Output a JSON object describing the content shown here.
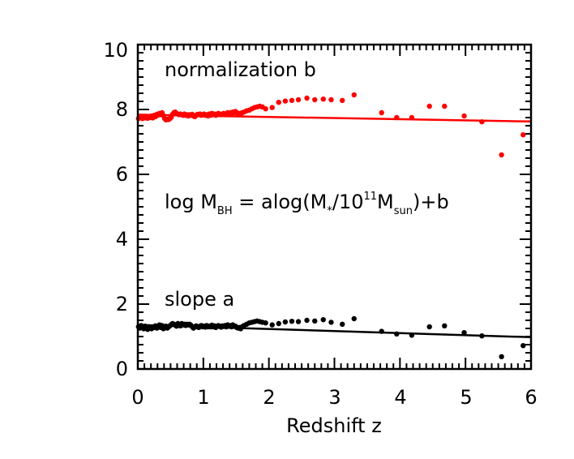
{
  "chart_data": {
    "type": "scatter",
    "title": "",
    "xlabel": "Redshift z",
    "ylabel": "",
    "xlim": [
      0,
      6
    ],
    "ylim": [
      0,
      10
    ],
    "x_ticks": [
      "0",
      "1",
      "2",
      "3",
      "4",
      "5",
      "6"
    ],
    "y_ticks": [
      "0",
      "2",
      "4",
      "6",
      "8",
      "10"
    ],
    "annotations": {
      "normalization": "normalization b",
      "slope": "slope a",
      "formula_parts": {
        "p1": "log M",
        "p1_sub": "BH",
        "p2": " = alog(M",
        "p2_sub": "*",
        "p3": "/10",
        "p3_sup": "11",
        "p4": "M",
        "p4_sub": "sun",
        "p5": ")+b"
      }
    },
    "series": [
      {
        "name": "normalization b",
        "color": "#ff0000",
        "points": [
          [
            0.01,
            7.72
          ],
          [
            0.03,
            7.75
          ],
          [
            0.05,
            7.78
          ],
          [
            0.07,
            7.72
          ],
          [
            0.09,
            7.76
          ],
          [
            0.11,
            7.74
          ],
          [
            0.13,
            7.79
          ],
          [
            0.15,
            7.73
          ],
          [
            0.17,
            7.77
          ],
          [
            0.19,
            7.75
          ],
          [
            0.21,
            7.8
          ],
          [
            0.23,
            7.74
          ],
          [
            0.25,
            7.82
          ],
          [
            0.27,
            7.78
          ],
          [
            0.29,
            7.85
          ],
          [
            0.31,
            7.83
          ],
          [
            0.33,
            7.88
          ],
          [
            0.35,
            7.84
          ],
          [
            0.37,
            7.9
          ],
          [
            0.39,
            7.81
          ],
          [
            0.41,
            7.72
          ],
          [
            0.43,
            7.68
          ],
          [
            0.45,
            7.7
          ],
          [
            0.47,
            7.69
          ],
          [
            0.49,
            7.72
          ],
          [
            0.51,
            7.76
          ],
          [
            0.53,
            7.85
          ],
          [
            0.55,
            7.9
          ],
          [
            0.57,
            7.92
          ],
          [
            0.59,
            7.88
          ],
          [
            0.61,
            7.86
          ],
          [
            0.63,
            7.84
          ],
          [
            0.65,
            7.86
          ],
          [
            0.67,
            7.84
          ],
          [
            0.69,
            7.82
          ],
          [
            0.71,
            7.86
          ],
          [
            0.73,
            7.82
          ],
          [
            0.75,
            7.84
          ],
          [
            0.77,
            7.8
          ],
          [
            0.79,
            7.84
          ],
          [
            0.81,
            7.82
          ],
          [
            0.83,
            7.85
          ],
          [
            0.85,
            7.8
          ],
          [
            0.87,
            7.78
          ],
          [
            0.89,
            7.82
          ],
          [
            0.91,
            7.85
          ],
          [
            0.93,
            7.84
          ],
          [
            0.95,
            7.86
          ],
          [
            0.97,
            7.82
          ],
          [
            0.99,
            7.84
          ],
          [
            1.01,
            7.86
          ],
          [
            1.03,
            7.82
          ],
          [
            1.05,
            7.84
          ],
          [
            1.07,
            7.8
          ],
          [
            1.09,
            7.86
          ],
          [
            1.11,
            7.82
          ],
          [
            1.13,
            7.88
          ],
          [
            1.15,
            7.84
          ],
          [
            1.17,
            7.86
          ],
          [
            1.19,
            7.82
          ],
          [
            1.21,
            7.84
          ],
          [
            1.23,
            7.88
          ],
          [
            1.25,
            7.86
          ],
          [
            1.27,
            7.84
          ],
          [
            1.29,
            7.86
          ],
          [
            1.31,
            7.88
          ],
          [
            1.33,
            7.84
          ],
          [
            1.35,
            7.86
          ],
          [
            1.37,
            7.9
          ],
          [
            1.39,
            7.86
          ],
          [
            1.41,
            7.9
          ],
          [
            1.43,
            7.88
          ],
          [
            1.45,
            7.92
          ],
          [
            1.47,
            7.9
          ],
          [
            1.49,
            7.94
          ],
          [
            1.51,
            7.9
          ],
          [
            1.53,
            7.86
          ],
          [
            1.55,
            7.88
          ],
          [
            1.57,
            7.84
          ],
          [
            1.59,
            7.9
          ],
          [
            1.62,
            7.92
          ],
          [
            1.66,
            7.96
          ],
          [
            1.7,
            7.98
          ],
          [
            1.74,
            8.02
          ],
          [
            1.78,
            8.06
          ],
          [
            1.82,
            8.08
          ],
          [
            1.86,
            8.1
          ],
          [
            1.9,
            8.08
          ],
          [
            1.95,
            8.02
          ],
          [
            2.05,
            8.06
          ],
          [
            2.15,
            8.22
          ],
          [
            2.25,
            8.26
          ],
          [
            2.35,
            8.28
          ],
          [
            2.45,
            8.3
          ],
          [
            2.58,
            8.35
          ],
          [
            2.7,
            8.3
          ],
          [
            2.83,
            8.32
          ],
          [
            2.95,
            8.3
          ],
          [
            3.12,
            8.28
          ],
          [
            3.3,
            8.45
          ],
          [
            3.72,
            7.9
          ],
          [
            3.95,
            7.75
          ],
          [
            4.18,
            7.75
          ],
          [
            4.45,
            8.1
          ],
          [
            4.68,
            8.1
          ],
          [
            4.98,
            7.8
          ],
          [
            5.25,
            7.62
          ],
          [
            5.55,
            6.6
          ],
          [
            5.88,
            7.22
          ]
        ],
        "fit": [
          [
            0,
            7.84
          ],
          [
            6,
            7.63
          ]
        ]
      },
      {
        "name": "slope a",
        "color": "#000000",
        "points": [
          [
            0.01,
            1.3
          ],
          [
            0.03,
            1.26
          ],
          [
            0.05,
            1.34
          ],
          [
            0.07,
            1.28
          ],
          [
            0.09,
            1.24
          ],
          [
            0.11,
            1.32
          ],
          [
            0.13,
            1.27
          ],
          [
            0.15,
            1.22
          ],
          [
            0.17,
            1.3
          ],
          [
            0.19,
            1.26
          ],
          [
            0.21,
            1.24
          ],
          [
            0.23,
            1.3
          ],
          [
            0.25,
            1.28
          ],
          [
            0.27,
            1.33
          ],
          [
            0.29,
            1.26
          ],
          [
            0.31,
            1.3
          ],
          [
            0.33,
            1.36
          ],
          [
            0.35,
            1.28
          ],
          [
            0.37,
            1.34
          ],
          [
            0.39,
            1.24
          ],
          [
            0.41,
            1.28
          ],
          [
            0.43,
            1.32
          ],
          [
            0.45,
            1.26
          ],
          [
            0.47,
            1.3
          ],
          [
            0.49,
            1.33
          ],
          [
            0.51,
            1.37
          ],
          [
            0.53,
            1.4
          ],
          [
            0.55,
            1.38
          ],
          [
            0.57,
            1.35
          ],
          [
            0.59,
            1.32
          ],
          [
            0.61,
            1.4
          ],
          [
            0.63,
            1.37
          ],
          [
            0.65,
            1.33
          ],
          [
            0.67,
            1.4
          ],
          [
            0.69,
            1.36
          ],
          [
            0.71,
            1.38
          ],
          [
            0.73,
            1.34
          ],
          [
            0.75,
            1.38
          ],
          [
            0.77,
            1.36
          ],
          [
            0.79,
            1.38
          ],
          [
            0.81,
            1.35
          ],
          [
            0.83,
            1.3
          ],
          [
            0.85,
            1.26
          ],
          [
            0.87,
            1.3
          ],
          [
            0.89,
            1.33
          ],
          [
            0.91,
            1.3
          ],
          [
            0.93,
            1.28
          ],
          [
            0.95,
            1.32
          ],
          [
            0.97,
            1.34
          ],
          [
            0.99,
            1.3
          ],
          [
            1.01,
            1.32
          ],
          [
            1.03,
            1.29
          ],
          [
            1.05,
            1.34
          ],
          [
            1.07,
            1.3
          ],
          [
            1.09,
            1.32
          ],
          [
            1.11,
            1.3
          ],
          [
            1.13,
            1.35
          ],
          [
            1.15,
            1.3
          ],
          [
            1.17,
            1.33
          ],
          [
            1.19,
            1.28
          ],
          [
            1.21,
            1.32
          ],
          [
            1.23,
            1.34
          ],
          [
            1.25,
            1.31
          ],
          [
            1.27,
            1.29
          ],
          [
            1.29,
            1.33
          ],
          [
            1.31,
            1.31
          ],
          [
            1.33,
            1.34
          ],
          [
            1.35,
            1.3
          ],
          [
            1.37,
            1.36
          ],
          [
            1.39,
            1.32
          ],
          [
            1.41,
            1.34
          ],
          [
            1.43,
            1.3
          ],
          [
            1.45,
            1.36
          ],
          [
            1.47,
            1.33
          ],
          [
            1.49,
            1.32
          ],
          [
            1.51,
            1.28
          ],
          [
            1.53,
            1.26
          ],
          [
            1.55,
            1.28
          ],
          [
            1.57,
            1.24
          ],
          [
            1.59,
            1.3
          ],
          [
            1.62,
            1.34
          ],
          [
            1.66,
            1.38
          ],
          [
            1.7,
            1.42
          ],
          [
            1.74,
            1.44
          ],
          [
            1.78,
            1.46
          ],
          [
            1.82,
            1.48
          ],
          [
            1.86,
            1.46
          ],
          [
            1.9,
            1.44
          ],
          [
            1.95,
            1.42
          ],
          [
            2.05,
            1.36
          ],
          [
            2.15,
            1.4
          ],
          [
            2.25,
            1.45
          ],
          [
            2.35,
            1.47
          ],
          [
            2.45,
            1.46
          ],
          [
            2.58,
            1.5
          ],
          [
            2.7,
            1.48
          ],
          [
            2.83,
            1.52
          ],
          [
            2.95,
            1.44
          ],
          [
            3.12,
            1.38
          ],
          [
            3.3,
            1.55
          ],
          [
            3.72,
            1.16
          ],
          [
            3.95,
            1.08
          ],
          [
            4.18,
            1.04
          ],
          [
            4.45,
            1.3
          ],
          [
            4.68,
            1.33
          ],
          [
            4.98,
            1.12
          ],
          [
            5.25,
            1.02
          ],
          [
            5.55,
            0.38
          ],
          [
            5.88,
            0.72
          ]
        ],
        "fit": [
          [
            0,
            1.36
          ],
          [
            6,
            0.98
          ]
        ]
      }
    ]
  }
}
